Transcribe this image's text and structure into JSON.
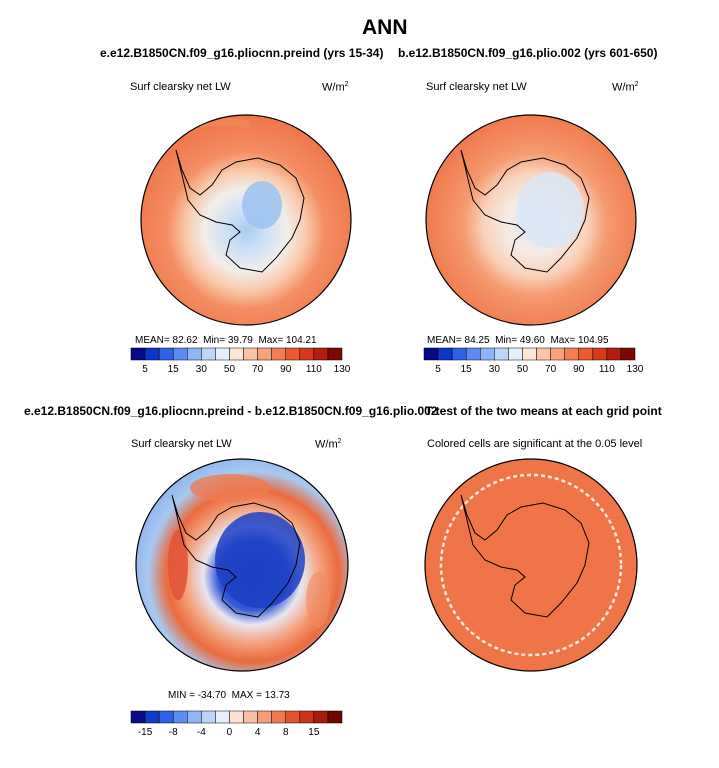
{
  "figure": {
    "title": "ANN"
  },
  "palettes": {
    "abs": [
      "#08088c",
      "#0c36c8",
      "#2e62e6",
      "#5a8cf2",
      "#8cb6f8",
      "#bcd6fa",
      "#e6f0fc",
      "#fde6d6",
      "#fbc4a4",
      "#f8a27a",
      "#f47e54",
      "#ec5a32",
      "#d8381c",
      "#b41e0e",
      "#7c0804"
    ],
    "diff": [
      "#0a0a8a",
      "#0e3cc8",
      "#2c64e8",
      "#5a8ef2",
      "#8cb6f8",
      "#bcd4fa",
      "#e6eefc",
      "#fde2d4",
      "#fbc0a4",
      "#f69e7c",
      "#ef7a52",
      "#e3542e",
      "#cc3418",
      "#a81a0a",
      "#700600"
    ]
  },
  "chart_data": [
    {
      "type": "heatmap",
      "title": "e.e12.B1850CN.f09_g16.pliocnn.preind (yrs 15-34)",
      "label": "Surf clearsky net LW",
      "units": "W/m",
      "units_sup": "2",
      "stats": {
        "mean_label": "MEAN=",
        "mean": "82.62",
        "min_label": "Min=",
        "min": "39.79",
        "max_label": "Max=",
        "max": "104.21"
      },
      "colorbar_ticks": [
        "5",
        "15",
        "30",
        "50",
        "70",
        "90",
        "110",
        "130"
      ]
    },
    {
      "type": "heatmap",
      "title": "b.e12.B1850CN.f09_g16.plio.002 (yrs 601-650)",
      "label": "Surf clearsky net LW",
      "units": "W/m",
      "units_sup": "2",
      "stats": {
        "mean_label": "MEAN=",
        "mean": "84.25",
        "min_label": "Min=",
        "min": "49.60",
        "max_label": "Max=",
        "max": "104.95"
      },
      "colorbar_ticks": [
        "5",
        "15",
        "30",
        "50",
        "70",
        "90",
        "110",
        "130"
      ]
    },
    {
      "type": "heatmap",
      "title": "e.e12.B1850CN.f09_g16.pliocnn.preind - b.e12.B1850CN.f09_g16.plio.002",
      "label": "Surf clearsky net LW",
      "units": "W/m",
      "units_sup": "2",
      "stats": {
        "text": "MIN = -34.70  MAX = 13.73"
      },
      "colorbar_ticks": [
        "-15",
        "-8",
        "-4",
        "0",
        "4",
        "8",
        "15"
      ]
    },
    {
      "type": "heatmap",
      "title": "T-test of the two means at each grid point",
      "label": "Colored cells are significant at the 0.05 level"
    }
  ]
}
